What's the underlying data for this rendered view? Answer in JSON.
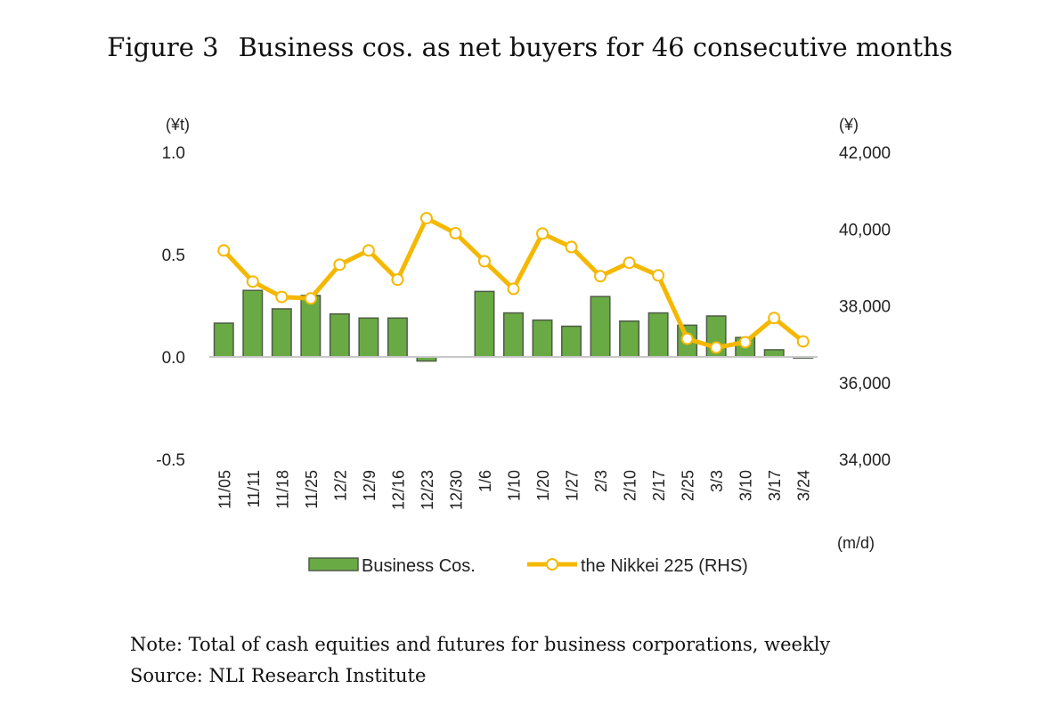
{
  "figure": {
    "label": "Figure 3",
    "title": "Business cos. as net buyers for 46 consecutive months"
  },
  "notes": {
    "note": "Note: Total of cash equities and futures for business corporations, weekly",
    "source": "Source: NLI Research Institute"
  },
  "colors": {
    "bar_fill": "#6aaa45",
    "bar_border": "#4f5b47",
    "line": "#f5b800",
    "axis": "#c8c8c8"
  },
  "chart_data": {
    "type": "bar+line",
    "title": "Business cos. as net buyers for 46 consecutive months",
    "xlabel": "(m/d)",
    "ylabel_left": "(¥t)",
    "ylabel_right": "(¥)",
    "categories": [
      "11/05",
      "11/11",
      "11/18",
      "11/25",
      "12/2",
      "12/9",
      "12/16",
      "12/23",
      "12/30",
      "1/6",
      "1/10",
      "1/20",
      "1/27",
      "2/3",
      "2/10",
      "2/17",
      "2/25",
      "3/3",
      "3/10",
      "3/17",
      "3/24"
    ],
    "series": [
      {
        "name": "Business Cos.",
        "type": "bar",
        "axis": "left",
        "values": [
          0.165,
          0.325,
          0.235,
          0.3,
          0.21,
          0.19,
          0.19,
          -0.02,
          0.0,
          0.32,
          0.215,
          0.18,
          0.15,
          0.295,
          0.175,
          0.215,
          0.155,
          0.2,
          0.095,
          0.035,
          -0.005
        ]
      },
      {
        "name": "the Nikkei 225 (RHS)",
        "type": "line",
        "axis": "right",
        "values": [
          39440,
          38630,
          38230,
          38190,
          39070,
          39440,
          38680,
          40280,
          39890,
          39160,
          38440,
          39880,
          39530,
          38770,
          39120,
          38790,
          37140,
          36910,
          37050,
          37680,
          37070
        ]
      }
    ],
    "y_left": {
      "range": [
        -0.5,
        1.0
      ],
      "ticks": [
        "1.0",
        "0.5",
        "0.0",
        "-0.5"
      ],
      "tick_values": [
        1.0,
        0.5,
        0.0,
        -0.5
      ]
    },
    "y_right": {
      "range": [
        34000,
        42000
      ],
      "ticks": [
        "42,000",
        "40,000",
        "38,000",
        "36,000",
        "34,000"
      ],
      "tick_values": [
        42000,
        40000,
        38000,
        36000,
        34000
      ]
    },
    "grid": false,
    "legend": {
      "position": "bottom",
      "items": [
        "Business Cos.",
        "the Nikkei 225 (RHS)"
      ]
    }
  }
}
